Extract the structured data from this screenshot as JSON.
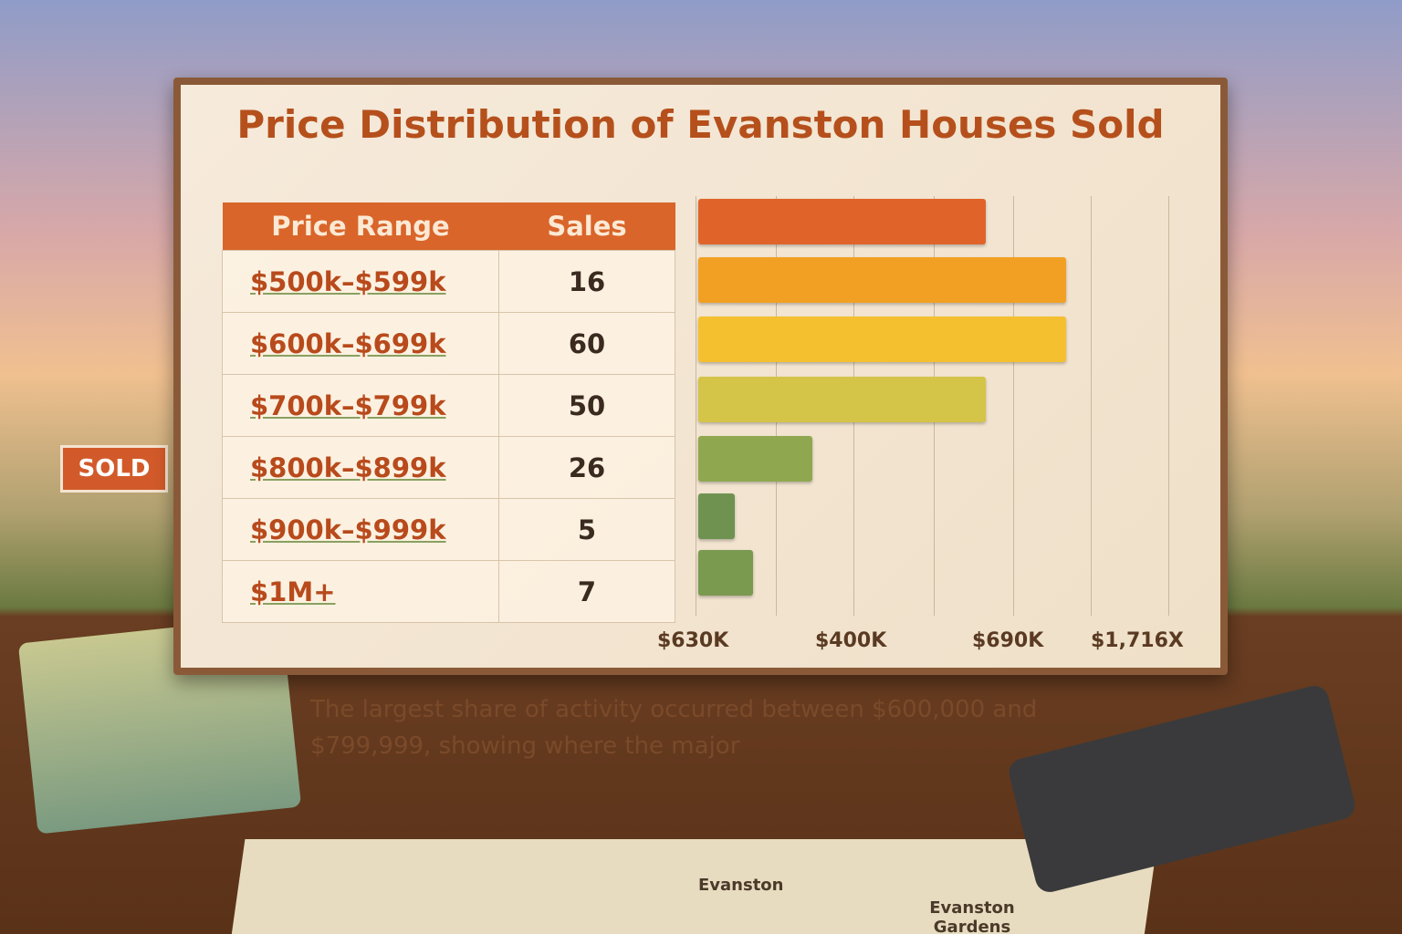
{
  "header": {
    "title": "Price Distribution of Evanston Houses Sold"
  },
  "table": {
    "columns": [
      "Price Range",
      "Sales"
    ],
    "rows": [
      [
        "$500k–$599k",
        "16"
      ],
      [
        "$600k–$699k",
        "60"
      ],
      [
        "$700k–$799k",
        "50"
      ],
      [
        "$800k–$899k",
        "26"
      ],
      [
        "$900k–$999k",
        "5"
      ],
      [
        "$1M+",
        "7"
      ]
    ]
  },
  "axis_labels": [
    "$630K",
    "$400K",
    "$690K",
    "$1,716X"
  ],
  "caption": "The largest share of activity occurred between $600,000 and $799,999, showing where the major",
  "scene": {
    "sign": "SOLD",
    "map_labels": [
      "Evanston",
      "Evanston Gardens"
    ]
  }
}
